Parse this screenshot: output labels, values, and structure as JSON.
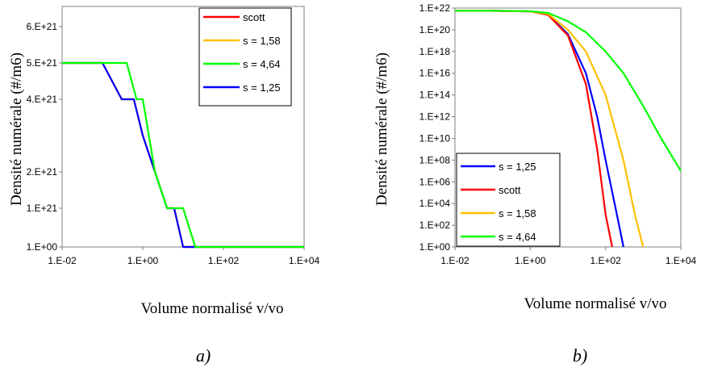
{
  "chart_data": [
    {
      "id": "a",
      "type": "line",
      "caption": "a)",
      "xlabel": "Volume normalisé v/vo",
      "ylabel": "Densité numérale (#/m6)",
      "x_scale": "log",
      "xlim": [
        0.01,
        10000
      ],
      "x_ticks": [
        0.01,
        1,
        100,
        10000
      ],
      "x_tick_labels": [
        "1.E-02",
        "1.E+00",
        "1.E+02",
        "1.E+04"
      ],
      "y_scale": "non-uniform",
      "y_ticks": [
        1,
        1e+21,
        2e+21,
        4e+21,
        5e+21,
        6e+21
      ],
      "y_tick_labels": [
        "1.E+00",
        "1.E+21",
        "2.E+21",
        "4.E+21",
        "5.E+21",
        "6.E+21"
      ],
      "grid": false,
      "legend_position": "top-right",
      "series": [
        {
          "name": "scott",
          "color": "#ff0000",
          "x": [
            0.01,
            0.03,
            0.1,
            0.3,
            0.6,
            1,
            2,
            4,
            6,
            10,
            20,
            40,
            100,
            10000
          ],
          "y": [
            "5.E+21",
            "5.E+21",
            "5.E+21",
            "4.E+21",
            "4.E+21",
            "3.E+21",
            "2.E+21",
            "1.E+21",
            "1.E+21",
            "1.E+00",
            "1.E+00",
            "1.E+00",
            "1.E+00",
            "1.E+00"
          ]
        },
        {
          "name": "s = 1,58",
          "color": "#ffc000",
          "x": [
            0.01,
            0.03,
            0.1,
            0.3,
            0.6,
            1,
            2,
            4,
            6,
            10,
            20,
            40,
            100,
            10000
          ],
          "y": [
            "5.E+21",
            "5.E+21",
            "5.E+21",
            "4.E+21",
            "4.E+21",
            "3.E+21",
            "2.E+21",
            "1.E+21",
            "1.E+21",
            "1.E+00",
            "1.E+00",
            "1.E+00",
            "1.E+00",
            "1.E+00"
          ]
        },
        {
          "name": "s = 4,64",
          "color": "#00ff00",
          "x": [
            0.01,
            0.03,
            0.06,
            0.1,
            0.15,
            0.25,
            0.4,
            0.7,
            1,
            2,
            4,
            7,
            10,
            20,
            40,
            100,
            10000
          ],
          "y": [
            "5.E+21",
            "5.E+21",
            "5.E+21",
            "5.E+21",
            "5.E+21",
            "5.E+21",
            "5.E+21",
            "4.E+21",
            "4.E+21",
            "2.E+21",
            "1.E+21",
            "1.E+21",
            "1.E+21",
            "1.E+00",
            "1.E+00",
            "1.E+00",
            "1.E+00"
          ]
        },
        {
          "name": "s = 1,25",
          "color": "#0000ff",
          "x": [
            0.01,
            0.03,
            0.1,
            0.3,
            0.6,
            1,
            2,
            4,
            6,
            10,
            20,
            40,
            100,
            10000
          ],
          "y": [
            "5.E+21",
            "5.E+21",
            "5.E+21",
            "4.E+21",
            "4.E+21",
            "3.E+21",
            "2.E+21",
            "1.E+21",
            "1.E+21",
            "1.E+00",
            "1.E+00",
            "1.E+00",
            "1.E+00",
            "1.E+00"
          ]
        }
      ]
    },
    {
      "id": "b",
      "type": "line",
      "caption": "b)",
      "xlabel": "Volume normalisé v/vo",
      "ylabel": "Densité numérale (#/m6)",
      "x_scale": "log",
      "xlim": [
        0.01,
        10000
      ],
      "x_ticks": [
        0.01,
        1,
        100,
        10000
      ],
      "x_tick_labels": [
        "1.E-02",
        "1.E+00",
        "1.E+02",
        "1.E+04"
      ],
      "y_scale": "log",
      "ylim": [
        1,
        1e+22
      ],
      "y_tick_labels": [
        "1.E+00",
        "1.E+02",
        "1.E+04",
        "1.E+06",
        "1.E+08",
        "1.E+10",
        "1.E+12",
        "1.E+14",
        "1.E+16",
        "1.E+18",
        "1.E+20",
        "1.E+22"
      ],
      "grid": false,
      "legend_position": "bottom-left",
      "series": [
        {
          "name": "s = 1,25",
          "color": "#0000ff",
          "x": [
            0.01,
            0.1,
            1,
            3,
            10,
            30,
            60,
            100,
            200,
            300
          ],
          "y": [
            5.7e+21,
            5.6e+21,
            5e+21,
            2.5e+21,
            4e+19,
            1e+16,
            1000000000000.0,
            100000000.0,
            1000.0,
            1
          ]
        },
        {
          "name": "scott",
          "color": "#ff0000",
          "x": [
            0.01,
            0.1,
            1,
            3,
            10,
            30,
            60,
            100,
            150
          ],
          "y": [
            5.7e+21,
            5.6e+21,
            5e+21,
            2.3e+21,
            3e+19,
            1000000000000000.0,
            1000000000.0,
            1000.0,
            1
          ]
        },
        {
          "name": "s = 1,58",
          "color": "#ffc000",
          "x": [
            0.01,
            0.1,
            1,
            3,
            10,
            30,
            100,
            300,
            600,
            1000
          ],
          "y": [
            5.7e+21,
            5.6e+21,
            5e+21,
            2.8e+21,
            1e+20,
            1e+18,
            100000000000000.0,
            100000000.0,
            1000.0,
            1
          ]
        },
        {
          "name": "s = 4,64",
          "color": "#00ff00",
          "x": [
            0.01,
            0.1,
            1,
            3,
            10,
            30,
            100,
            300,
            1000,
            3000,
            10000
          ],
          "y": [
            5.7e+21,
            5.7e+21,
            5.2e+21,
            3.5e+21,
            6e+20,
            6e+19,
            1e+18,
            1e+16,
            10000000000000.0,
            10000000000.0,
            10000000.0
          ]
        }
      ]
    }
  ]
}
